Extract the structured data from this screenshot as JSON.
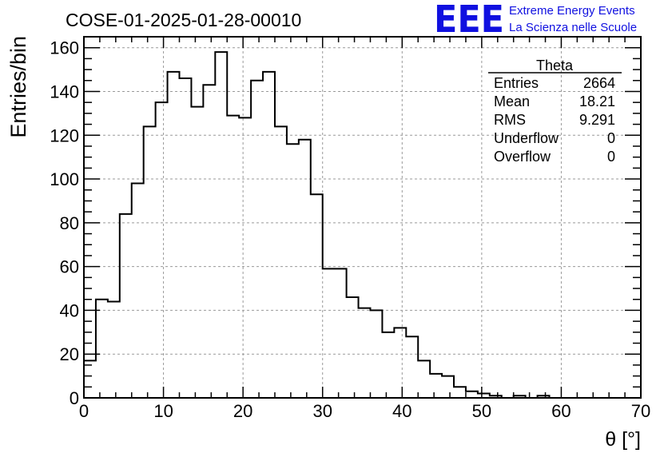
{
  "chart_data": {
    "type": "bar",
    "title": "COSE-01-2025-01-28-00010",
    "xlabel": "θ [°]",
    "ylabel": "Entries/bin",
    "xlim": [
      0,
      70
    ],
    "ylim": [
      0,
      165
    ],
    "grid": true,
    "x_ticks": [
      0,
      10,
      20,
      30,
      40,
      50,
      60,
      70
    ],
    "y_ticks": [
      0,
      20,
      40,
      60,
      80,
      100,
      120,
      140,
      160
    ],
    "bin_width": 1.5,
    "bin_start": 0,
    "values": [
      17,
      45,
      44,
      84,
      98,
      124,
      135,
      149,
      146,
      133,
      143,
      158,
      129,
      128,
      145,
      149,
      124,
      116,
      118,
      93,
      59,
      59,
      46,
      41,
      40,
      30,
      32,
      28,
      17,
      11,
      10,
      5,
      3,
      2,
      1,
      0,
      1,
      0,
      1,
      0,
      0,
      0,
      0,
      0,
      0,
      0
    ],
    "stats": {
      "title": "Theta",
      "rows": [
        {
          "label": "Entries",
          "value": "2664"
        },
        {
          "label": "Mean",
          "value": "18.21"
        },
        {
          "label": "RMS",
          "value": "9.291"
        },
        {
          "label": "Underflow",
          "value": "0"
        },
        {
          "label": "Overflow",
          "value": "0"
        }
      ]
    }
  },
  "logo": {
    "text": "EEE",
    "line1": "Extreme Energy Events",
    "line2": "La Scienza nelle Scuole",
    "color": "#1010e0"
  }
}
